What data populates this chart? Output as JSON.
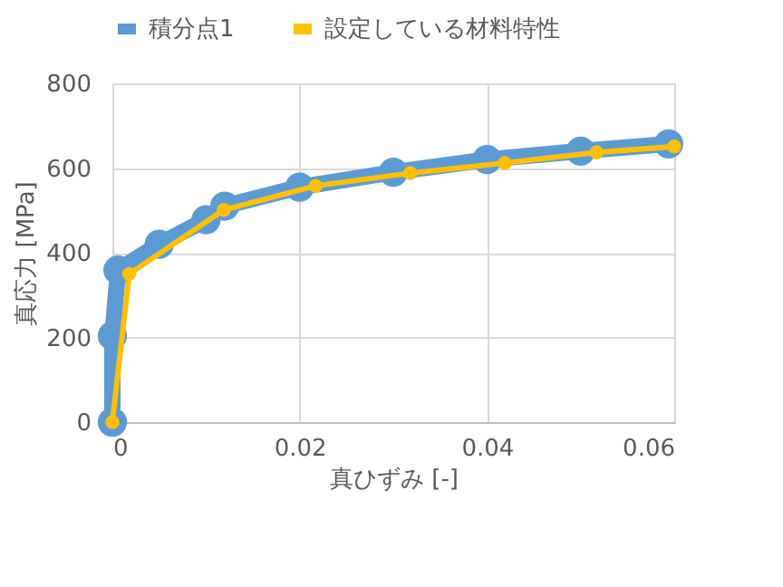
{
  "chart_data": {
    "type": "line",
    "xlabel": "真ひずみ [-]",
    "ylabel": "真応力 [MPa]",
    "xlim": [
      0,
      0.06
    ],
    "xticks": [
      {
        "value": 0,
        "label": "0"
      },
      0.02,
      0.04,
      0.06
    ],
    "ylim": [
      0,
      800
    ],
    "yticks": [
      0,
      200,
      400,
      600,
      800
    ],
    "grid": true,
    "legend": "top",
    "series": [
      {
        "name": "積分点1",
        "color": "#5b9bd5",
        "marker": "circle",
        "x": [
          0,
          0,
          0.0006,
          0.005,
          0.01,
          0.012,
          0.02,
          0.03,
          0.04,
          0.05,
          0.0594
        ],
        "values": [
          0,
          204,
          359,
          420,
          478,
          510,
          555,
          590,
          620,
          640,
          657
        ]
      },
      {
        "name": "設定している材料特性",
        "color": "#ffc000",
        "marker": "circle",
        "x": [
          0,
          0.0018,
          0.0119,
          0.0217,
          0.0318,
          0.0419,
          0.0517,
          0.06
        ],
        "values": [
          0,
          350,
          501,
          558,
          588,
          612,
          637,
          651
        ]
      }
    ]
  }
}
